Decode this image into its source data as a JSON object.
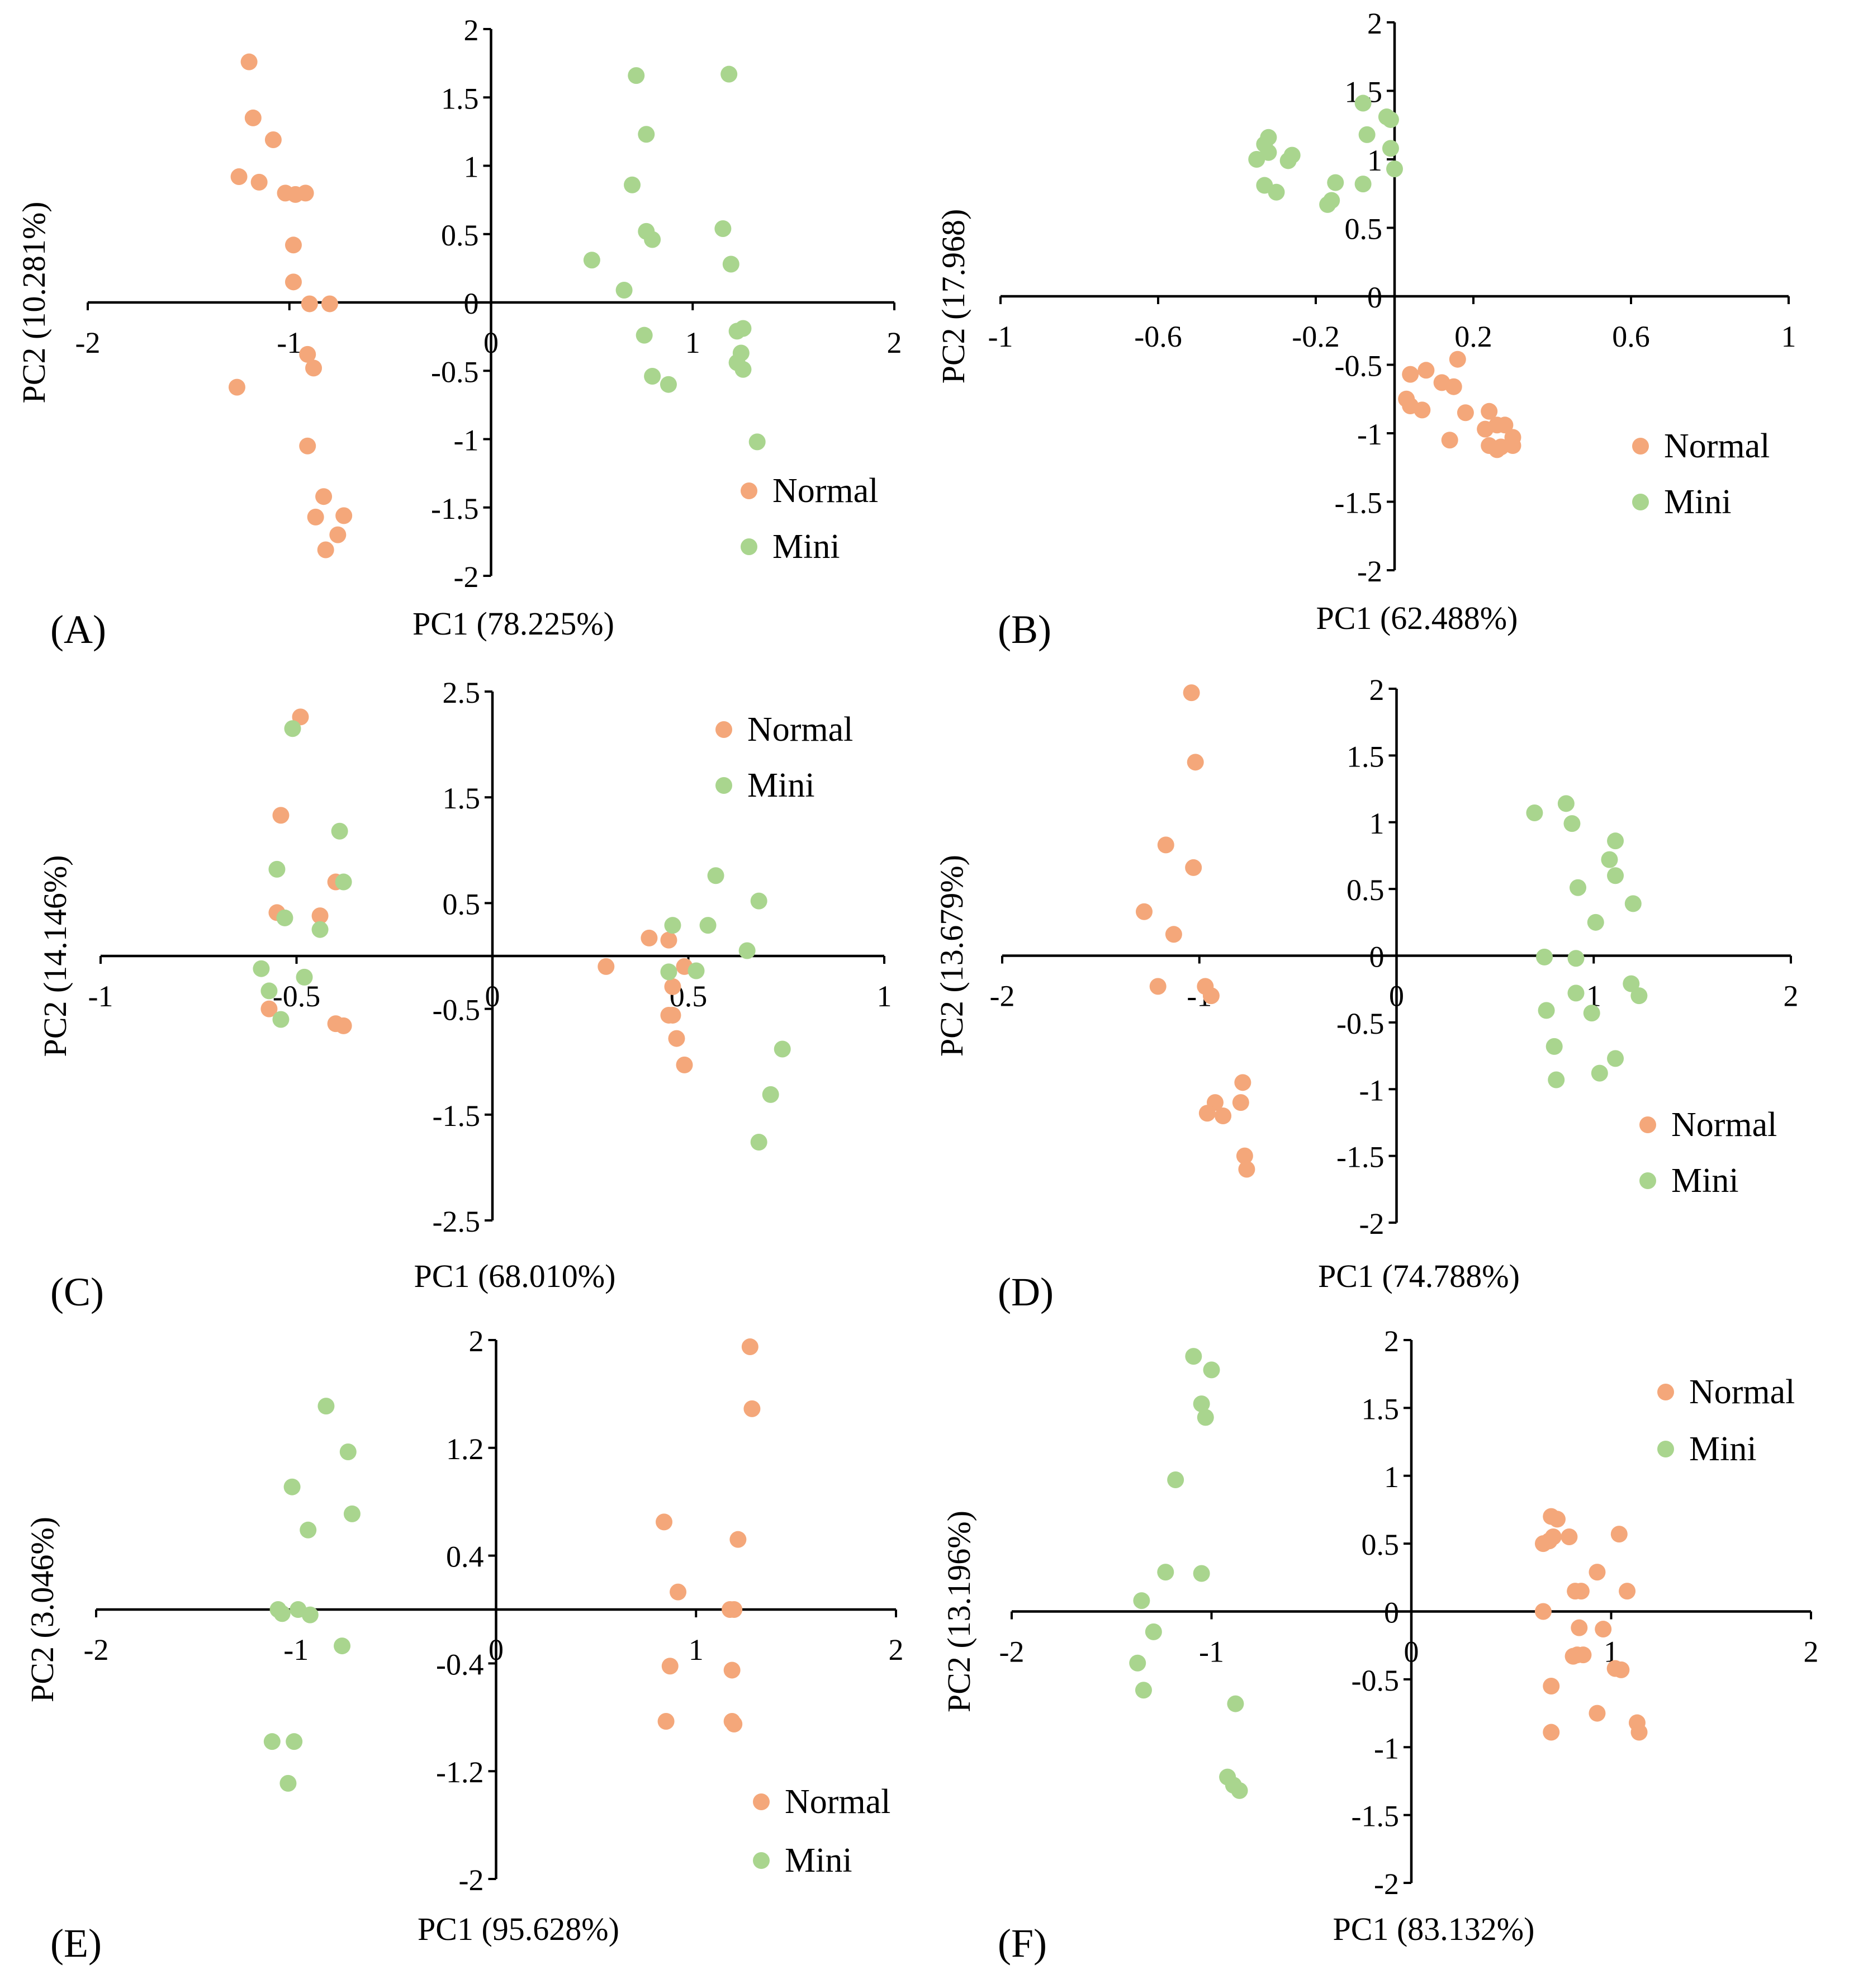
{
  "colors": {
    "normal": "#F4A77A",
    "mini": "#A9D58E"
  },
  "chart_data": [
    {
      "panel": "(A)",
      "type": "scatter",
      "xlabel": "PC1 (78.225%)",
      "ylabel": "PC2 (10.281%)",
      "xlim": [
        -2,
        2
      ],
      "ylim": [
        -2,
        2
      ],
      "xticks": [
        -2,
        -1,
        0,
        1,
        2
      ],
      "xtick_labels": [
        "-2",
        "-1",
        "0",
        "1",
        "2"
      ],
      "yticks": [
        -2,
        -1.5,
        -1,
        -0.5,
        0,
        0.5,
        1,
        1.5,
        2
      ],
      "ytick_labels": [
        "-2",
        "-1.5",
        "-1",
        "-0.5",
        "0",
        "0.5",
        "1",
        "1.5",
        "2"
      ],
      "legend": {
        "position": "bottom-right",
        "entries": [
          "Normal",
          "Mini"
        ]
      },
      "series": [
        {
          "name": "Normal",
          "color_key": "normal",
          "x": [
            -1.2,
            -1.18,
            -1.08,
            -1.25,
            -1.15,
            -1.02,
            -0.97,
            -0.92,
            -0.98,
            -0.98,
            -0.9,
            -0.8,
            -0.91,
            -1.26,
            -0.88,
            -0.91,
            -0.83,
            -0.76,
            -0.87,
            -0.82,
            -0.73
          ],
          "y": [
            1.76,
            1.35,
            1.19,
            0.92,
            0.88,
            0.8,
            0.79,
            0.8,
            0.42,
            0.15,
            -0.01,
            -0.01,
            -0.38,
            -0.62,
            -0.48,
            -1.05,
            -1.42,
            -1.7,
            -1.57,
            -1.81,
            -1.56
          ]
        },
        {
          "name": "Mini",
          "color_key": "mini",
          "x": [
            0.72,
            1.18,
            0.77,
            0.7,
            0.77,
            0.8,
            0.5,
            0.66,
            1.15,
            1.19,
            1.22,
            1.25,
            1.24,
            1.22,
            1.25,
            0.76,
            0.8,
            0.88,
            1.32
          ],
          "y": [
            1.66,
            1.67,
            1.23,
            0.86,
            0.52,
            0.46,
            0.31,
            0.09,
            0.54,
            0.28,
            -0.21,
            -0.19,
            -0.37,
            -0.44,
            -0.49,
            -0.24,
            -0.54,
            -0.6,
            -1.02
          ]
        }
      ]
    },
    {
      "panel": "(B)",
      "type": "scatter",
      "xlabel": "PC1 (62.488%)",
      "ylabel": "PC2 (17.968)",
      "xlim": [
        -1,
        1
      ],
      "ylim": [
        -2,
        2
      ],
      "xticks": [
        -1,
        -0.6,
        -0.2,
        0.2,
        0.6,
        1
      ],
      "xtick_labels": [
        "-1",
        "-0.6",
        "-0.2",
        "0.2",
        "0.6",
        "1"
      ],
      "yticks": [
        -2,
        -1.5,
        -1,
        -0.5,
        0,
        0.5,
        1,
        1.5,
        2
      ],
      "ytick_labels": [
        "-2",
        "-1.5",
        "-1",
        "-0.5",
        "0",
        "0.5",
        "1",
        "1.5",
        "2"
      ],
      "legend": {
        "position": "right",
        "entries": [
          "Normal",
          "Mini"
        ]
      },
      "series": [
        {
          "name": "Normal",
          "color_key": "normal",
          "x": [
            0.04,
            0.08,
            0.12,
            0.15,
            0.16,
            0.03,
            0.04,
            0.07,
            0.18,
            0.24,
            0.26,
            0.23,
            0.28,
            0.3,
            0.14,
            0.24,
            0.27,
            0.3,
            0.26
          ],
          "y": [
            -0.57,
            -0.54,
            -0.63,
            -0.66,
            -0.46,
            -0.75,
            -0.8,
            -0.83,
            -0.85,
            -0.84,
            -0.94,
            -0.97,
            -0.94,
            -1.03,
            -1.05,
            -1.09,
            -1.1,
            -1.09,
            -1.12
          ]
        },
        {
          "name": "Mini",
          "color_key": "mini",
          "x": [
            -0.08,
            -0.32,
            -0.33,
            -0.07,
            -0.02,
            -0.01,
            -0.35,
            -0.32,
            -0.26,
            -0.27,
            -0.33,
            -0.3,
            -0.15,
            -0.17,
            -0.16,
            -0.08,
            0.0,
            -0.01
          ],
          "y": [
            1.41,
            1.16,
            1.11,
            1.18,
            1.31,
            1.29,
            1.0,
            1.05,
            1.03,
            0.99,
            0.81,
            0.76,
            0.83,
            0.67,
            0.7,
            0.82,
            0.93,
            1.08
          ]
        }
      ]
    },
    {
      "panel": "(C)",
      "type": "scatter",
      "xlabel": "PC1 (68.010%)",
      "ylabel": "PC2 (14.146%)",
      "xlim": [
        -1,
        1
      ],
      "ylim": [
        -2.5,
        2.5
      ],
      "xticks": [
        -1,
        -0.5,
        0,
        0.5,
        1
      ],
      "xtick_labels": [
        "-1",
        "-0.5",
        "0",
        "0.5",
        "1"
      ],
      "yticks": [
        -2.5,
        -1.5,
        -0.5,
        0.5,
        1.5,
        2.5
      ],
      "ytick_labels": [
        "-2.5",
        "-1.5",
        "-0.5",
        "0.5",
        "1.5",
        "2.5"
      ],
      "legend": {
        "position": "top-right",
        "entries": [
          "Normal",
          "Mini"
        ]
      },
      "series": [
        {
          "name": "Normal",
          "color_key": "normal",
          "x": [
            -0.49,
            -0.54,
            -0.4,
            -0.55,
            -0.44,
            -0.57,
            -0.4,
            -0.38,
            0.29,
            0.4,
            0.45,
            0.46,
            0.46,
            0.47,
            0.49,
            0.45,
            0.49
          ],
          "y": [
            2.26,
            1.33,
            0.7,
            0.41,
            0.38,
            -0.5,
            -0.64,
            -0.66,
            -0.1,
            0.17,
            0.15,
            -0.29,
            -0.56,
            -0.78,
            -1.03,
            -0.56,
            -0.1
          ]
        },
        {
          "name": "Mini",
          "color_key": "mini",
          "x": [
            -0.51,
            -0.39,
            -0.55,
            -0.38,
            -0.53,
            -0.44,
            -0.59,
            -0.57,
            -0.48,
            -0.54,
            0.57,
            0.68,
            0.46,
            0.55,
            0.65,
            0.45,
            0.52,
            0.74,
            0.71,
            0.68
          ],
          "y": [
            2.15,
            1.18,
            0.82,
            0.7,
            0.36,
            0.25,
            -0.12,
            -0.33,
            -0.2,
            -0.6,
            0.76,
            0.52,
            0.29,
            0.29,
            0.05,
            -0.15,
            -0.14,
            -0.88,
            -1.31,
            -1.76
          ]
        }
      ]
    },
    {
      "panel": "(D)",
      "type": "scatter",
      "xlabel": "PC1 (74.788%)",
      "ylabel": "PC2 (13.679%)",
      "xlim": [
        -2,
        2
      ],
      "ylim": [
        -2,
        2
      ],
      "xticks": [
        -2,
        -1,
        0,
        1,
        2
      ],
      "xtick_labels": [
        "-2",
        "-1",
        "0",
        "1",
        "2"
      ],
      "yticks": [
        -2,
        -1.5,
        -1,
        -0.5,
        0,
        0.5,
        1,
        1.5,
        2
      ],
      "ytick_labels": [
        "-2",
        "-1.5",
        "-1",
        "-0.5",
        "0",
        "0.5",
        "1",
        "1.5",
        "2"
      ],
      "legend": {
        "position": "bottom-right",
        "entries": [
          "Normal",
          "Mini"
        ]
      },
      "series": [
        {
          "name": "Normal",
          "color_key": "normal",
          "x": [
            -1.04,
            -1.02,
            -1.17,
            -1.03,
            -1.28,
            -1.13,
            -1.21,
            -0.97,
            -0.94,
            -0.78,
            -0.92,
            -0.96,
            -0.88,
            -0.79,
            -0.77,
            -0.76
          ],
          "y": [
            1.97,
            1.45,
            0.83,
            0.66,
            0.33,
            0.16,
            -0.23,
            -0.23,
            -0.3,
            -0.95,
            -1.1,
            -1.18,
            -1.2,
            -1.1,
            -1.5,
            -1.6
          ]
        },
        {
          "name": "Mini",
          "color_key": "mini",
          "x": [
            0.7,
            0.86,
            0.89,
            1.11,
            1.08,
            1.11,
            1.2,
            0.92,
            1.01,
            0.75,
            0.91,
            1.19,
            1.23,
            0.76,
            0.99,
            0.91,
            0.8,
            1.11,
            0.81,
            1.03
          ],
          "y": [
            1.07,
            1.14,
            0.99,
            0.86,
            0.72,
            0.6,
            0.39,
            0.51,
            0.25,
            -0.01,
            -0.02,
            -0.21,
            -0.3,
            -0.41,
            -0.43,
            -0.28,
            -0.68,
            -0.77,
            -0.93,
            -0.88
          ]
        }
      ]
    },
    {
      "panel": "(E)",
      "type": "scatter",
      "xlabel": "PC1 (95.628%)",
      "ylabel": "PC2 (3.046%)",
      "xlim": [
        -2,
        2
      ],
      "ylim": [
        -2,
        2
      ],
      "xticks": [
        -2,
        -1,
        0,
        1,
        2
      ],
      "xtick_labels": [
        "-2",
        "-1",
        "0",
        "1",
        "2"
      ],
      "yticks": [
        -2,
        -1.2,
        -0.4,
        0.4,
        1.2,
        2
      ],
      "ytick_labels": [
        "-2",
        "-1.2",
        "-0.4",
        "0.4",
        "1.2",
        "2"
      ],
      "legend": {
        "position": "bottom-right",
        "entries": [
          "Normal",
          "Mini"
        ]
      },
      "series": [
        {
          "name": "Normal",
          "color_key": "normal",
          "x": [
            1.27,
            1.28,
            0.84,
            1.21,
            0.91,
            1.17,
            1.19,
            0.87,
            1.18,
            0.85,
            1.18,
            1.19
          ],
          "y": [
            1.95,
            1.49,
            0.65,
            0.52,
            0.13,
            0.0,
            0.0,
            -0.42,
            -0.45,
            -0.83,
            -0.83,
            -0.85
          ]
        },
        {
          "name": "Mini",
          "color_key": "mini",
          "x": [
            -0.85,
            -0.74,
            -1.02,
            -0.72,
            -0.94,
            -0.99,
            -1.09,
            -1.07,
            -0.93,
            -0.77,
            -1.12,
            -1.01,
            -1.04
          ],
          "y": [
            1.51,
            1.17,
            0.91,
            0.71,
            0.59,
            0.0,
            0.0,
            -0.03,
            -0.04,
            -0.27,
            -0.98,
            -0.98,
            -1.29
          ]
        }
      ]
    },
    {
      "panel": "(F)",
      "type": "scatter",
      "xlabel": "PC1 (83.132%)",
      "ylabel": "PC2 (13.196%)",
      "xlim": [
        -2,
        2
      ],
      "ylim": [
        -2,
        2
      ],
      "xticks": [
        -2,
        -1,
        0,
        1,
        2
      ],
      "xtick_labels": [
        "-2",
        "-1",
        "0",
        "1",
        "2"
      ],
      "yticks": [
        -2,
        -1.5,
        -1,
        -0.5,
        0,
        0.5,
        1,
        1.5,
        2
      ],
      "ytick_labels": [
        "-2",
        "-1.5",
        "-1",
        "-0.5",
        "0",
        "0.5",
        "1",
        "1.5",
        "2"
      ],
      "legend": {
        "position": "top-right",
        "entries": [
          "Normal",
          "Mini"
        ]
      },
      "series": [
        {
          "name": "Normal",
          "color_key": "normal",
          "x": [
            0.7,
            0.73,
            0.69,
            0.71,
            0.85,
            0.66,
            0.79,
            1.04,
            0.93,
            0.82,
            1.08,
            0.66,
            0.84,
            0.96,
            0.83,
            0.81,
            0.86,
            1.02,
            1.05,
            0.7,
            0.93,
            1.13,
            1.14,
            0.7
          ],
          "y": [
            0.7,
            0.68,
            0.52,
            0.55,
            0.15,
            0.5,
            0.55,
            0.57,
            0.29,
            0.15,
            0.15,
            0.0,
            -0.12,
            -0.13,
            -0.32,
            -0.33,
            -0.32,
            -0.42,
            -0.43,
            -0.55,
            -0.75,
            -0.82,
            -0.89,
            -0.89
          ]
        },
        {
          "name": "Mini",
          "color_key": "mini",
          "x": [
            -1.09,
            -1.0,
            -1.05,
            -1.03,
            -1.18,
            -1.23,
            -1.05,
            -1.35,
            -1.29,
            -1.37,
            -1.34,
            -0.88,
            -0.92,
            -0.89,
            -0.86
          ],
          "y": [
            1.88,
            1.78,
            1.53,
            1.43,
            0.97,
            0.29,
            0.28,
            0.08,
            -0.15,
            -0.38,
            -0.58,
            -0.68,
            -1.22,
            -1.28,
            -1.32
          ]
        }
      ]
    }
  ]
}
